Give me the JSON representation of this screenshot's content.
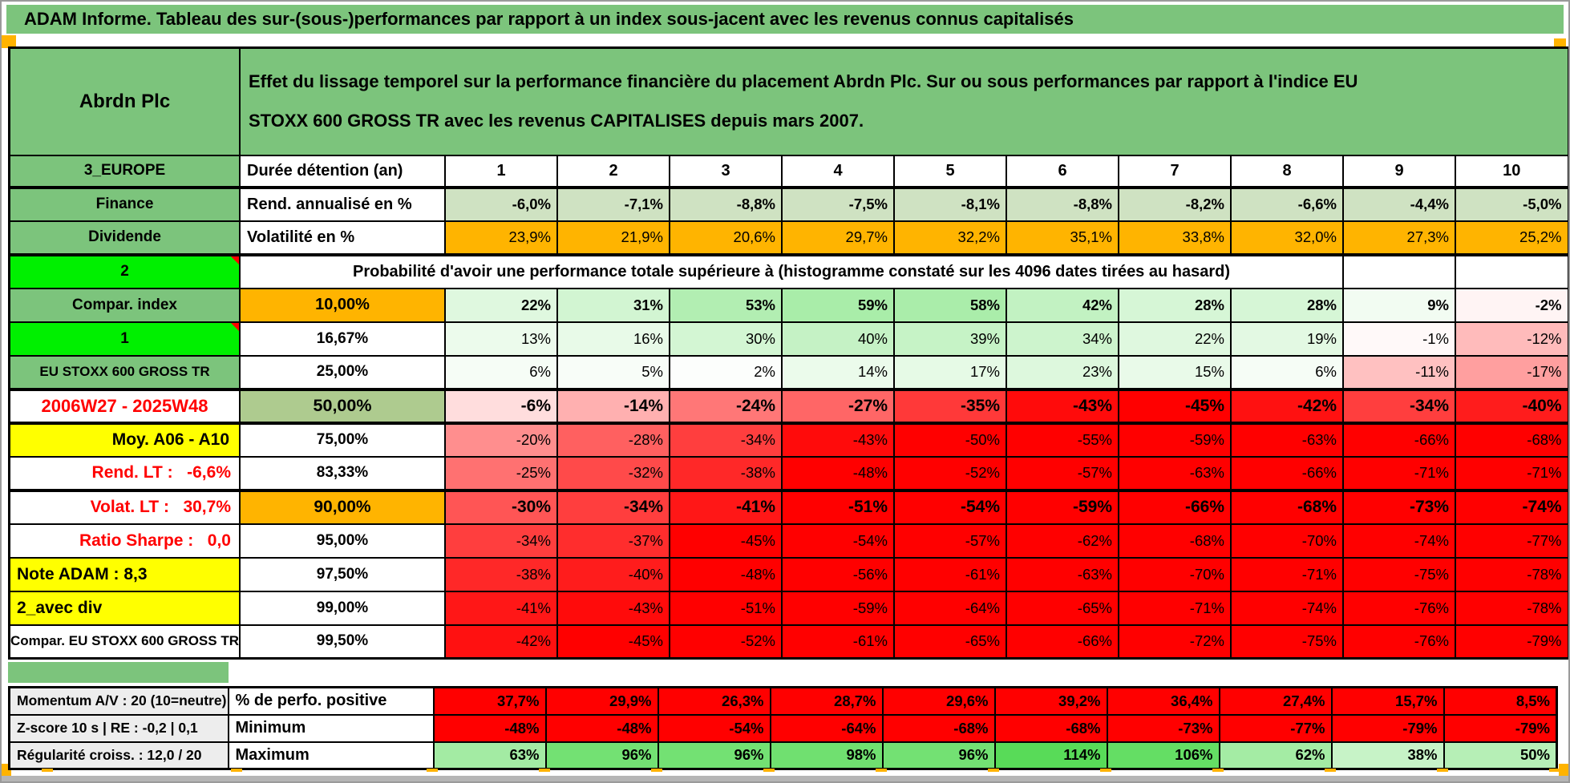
{
  "title_bar": "ADAM Informe. Tableau des sur-(sous-)performances par rapport à un index sous-jacent avec les revenus connus capitalisés",
  "colors": {
    "header_green": "#7CC47C",
    "bright_green": "#00F000",
    "orange": "#FFB400",
    "yellow": "#FFFF00",
    "sage": "#AECB8F",
    "pale_green_fill": "#CFE2C2",
    "red_fill": "#FF0000",
    "red_text": "#FF0000",
    "scale_green_target": "#57DB57",
    "gray_fill": "#EDEDED",
    "accent_orange": "#FFB300"
  },
  "sheet": {
    "corner_label": "Abrdn Plc",
    "description": "Effet du lissage temporel sur la performance financière du placement Abrdn Plc. Sur ou sous performances par rapport à l'indice EU STOXX 600 GROSS TR avec les revenus CAPITALISES depuis mars 2007.",
    "duration": {
      "label": "3_EUROPE",
      "param": "Durée détention (an)",
      "years": [
        "1",
        "2",
        "3",
        "4",
        "5",
        "6",
        "7",
        "8",
        "9",
        "10"
      ]
    },
    "rows": [
      {
        "label": "Finance",
        "label_style": "green",
        "param": "Rend. annualisé en %",
        "param_style": "wl",
        "type": "fixed",
        "bg": "pale_green_fill",
        "bold": true,
        "values": [
          "-6,0%",
          "-7,1%",
          "-8,8%",
          "-7,5%",
          "-8,1%",
          "-8,8%",
          "-8,2%",
          "-6,6%",
          "-4,4%",
          "-5,0%"
        ]
      },
      {
        "label": "Dividende",
        "label_style": "green",
        "param": "Volatilité en %",
        "param_style": "wl",
        "type": "fixed",
        "bg": "orange",
        "bold": false,
        "thick_bottom": true,
        "values": [
          "23,9%",
          "21,9%",
          "20,6%",
          "29,7%",
          "32,2%",
          "35,1%",
          "33,8%",
          "32,0%",
          "27,3%",
          "25,2%"
        ]
      },
      {
        "label": "2",
        "label_style": "bright",
        "note": true,
        "type": "merged",
        "merged_text": "Probabilité d'avoir une performance totale supérieure à (histogramme constaté sur les 4096 dates tirées au hasard)",
        "trailing": [
          "",
          ""
        ]
      },
      {
        "label": "Compar. index",
        "label_style": "green",
        "param": "10,00%",
        "param_style": "orange",
        "type": "scale",
        "bold": true,
        "values": [
          22,
          31,
          53,
          59,
          58,
          42,
          28,
          28,
          9,
          -2
        ]
      },
      {
        "label": "1",
        "label_style": "bright",
        "note": true,
        "param": "16,67%",
        "param_style": "wc",
        "type": "scale",
        "values": [
          13,
          16,
          30,
          40,
          39,
          34,
          22,
          19,
          -1,
          -12
        ]
      },
      {
        "label": "EU STOXX 600 GROSS TR",
        "label_style": "green-sm",
        "param": "25,00%",
        "param_style": "wc",
        "type": "scale",
        "values": [
          6,
          5,
          2,
          14,
          17,
          23,
          15,
          6,
          -11,
          -17
        ]
      },
      {
        "label": "2006W27 - 2025W48",
        "label_style": "white-red",
        "param": "50,00%",
        "param_style": "sage",
        "type": "scale",
        "bold": true,
        "big": true,
        "thick_top": true,
        "thick_bottom": true,
        "values": [
          -6,
          -14,
          -24,
          -27,
          -35,
          -43,
          -45,
          -42,
          -34,
          -40
        ]
      },
      {
        "label": "Moy. A06 - A10",
        "label_style": "yellow-right",
        "param": "75,00%",
        "param_style": "wc",
        "type": "scale",
        "values": [
          -20,
          -28,
          -34,
          -43,
          -50,
          -55,
          -59,
          -63,
          -66,
          -68
        ]
      },
      {
        "label": "Rend. LT :   -6,6%",
        "label_style": "red-right",
        "param": "83,33%",
        "param_style": "wc",
        "type": "scale",
        "values": [
          -25,
          -32,
          -38,
          -48,
          -52,
          -57,
          -63,
          -66,
          -71,
          -71
        ]
      },
      {
        "label": "Volat. LT :   30,7%",
        "label_style": "red-right",
        "param": "90,00%",
        "param_style": "orange-b",
        "type": "scale",
        "bold": true,
        "big": true,
        "thick_top": true,
        "values": [
          -30,
          -34,
          -41,
          -51,
          -54,
          -59,
          -66,
          -68,
          -73,
          -74
        ]
      },
      {
        "label": "Ratio Sharpe :   0,0",
        "label_style": "red-right",
        "param": "95,00%",
        "param_style": "wc",
        "type": "scale",
        "values": [
          -34,
          -37,
          -45,
          -54,
          -57,
          -62,
          -68,
          -70,
          -74,
          -77
        ]
      },
      {
        "label": "Note ADAM : 8,3",
        "label_style": "yellow-left",
        "param": "97,50%",
        "param_style": "wc",
        "type": "scale",
        "values": [
          -38,
          -40,
          -48,
          -56,
          -61,
          -63,
          -70,
          -71,
          -75,
          -78
        ]
      },
      {
        "label": "2_avec div",
        "label_style": "yellow-left",
        "param": "99,00%",
        "param_style": "wc",
        "type": "scale",
        "values": [
          -41,
          -43,
          -51,
          -59,
          -64,
          -65,
          -71,
          -74,
          -76,
          -78
        ]
      },
      {
        "label": "Compar. EU STOXX 600 GROSS TR",
        "label_style": "white-sm",
        "param": "99,50%",
        "param_style": "wc",
        "type": "scale",
        "values": [
          -42,
          -45,
          -52,
          -61,
          -65,
          -66,
          -72,
          -75,
          -76,
          -79
        ]
      }
    ],
    "bottom_rows": [
      {
        "label": "Momentum A/V : 20 (10=neutre)",
        "param": "% de perfo. positive",
        "type": "fixed",
        "bg": "red_fill",
        "bold": true,
        "values": [
          "37,7%",
          "29,9%",
          "26,3%",
          "28,7%",
          "29,6%",
          "39,2%",
          "36,4%",
          "27,4%",
          "15,7%",
          "8,5%"
        ]
      },
      {
        "label": "Z-score 10 s | RE : -0,2 | 0,1",
        "param": "Minimum",
        "type": "fixed",
        "bg": "red_fill",
        "bold": true,
        "values": [
          "-48%",
          "-48%",
          "-54%",
          "-64%",
          "-68%",
          "-68%",
          "-73%",
          "-77%",
          "-79%",
          "-79%"
        ]
      },
      {
        "label": "Régularité croiss. : 12,0 / 20",
        "param": "Maximum",
        "type": "scale",
        "bold": true,
        "values": [
          63,
          96,
          96,
          98,
          96,
          114,
          106,
          62,
          38,
          50
        ]
      }
    ]
  }
}
